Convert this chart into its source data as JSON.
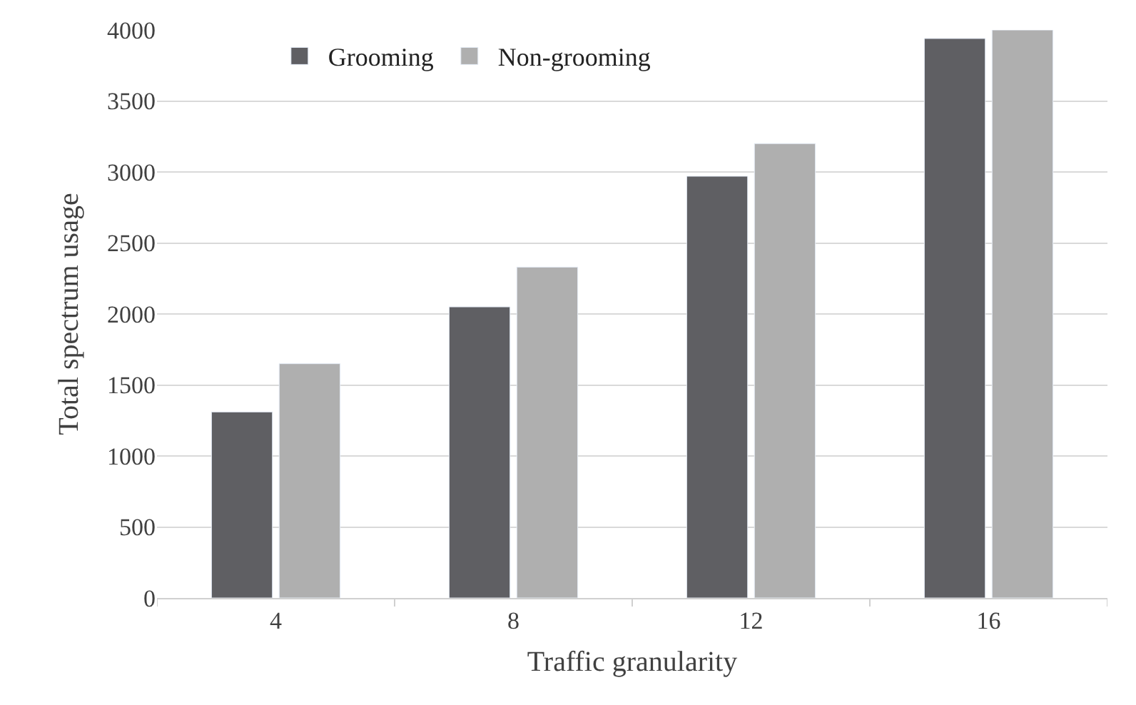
{
  "chart_data": {
    "type": "bar",
    "xlabel": "Traffic granularity",
    "ylabel": "Total spectrum usage",
    "categories": [
      "4",
      "8",
      "12",
      "16"
    ],
    "series": [
      {
        "name": "Grooming",
        "color": "#5f5f63",
        "values": [
          1310,
          2050,
          2970,
          3940
        ]
      },
      {
        "name": "Non-grooming",
        "color": "#afafaf",
        "values": [
          1650,
          2330,
          3200,
          4000
        ]
      }
    ],
    "ylim": [
      0,
      4000
    ],
    "yticks": [
      0,
      500,
      1000,
      1500,
      2000,
      2500,
      3000,
      3500,
      4000
    ],
    "grid": "y",
    "legend": "top left"
  }
}
